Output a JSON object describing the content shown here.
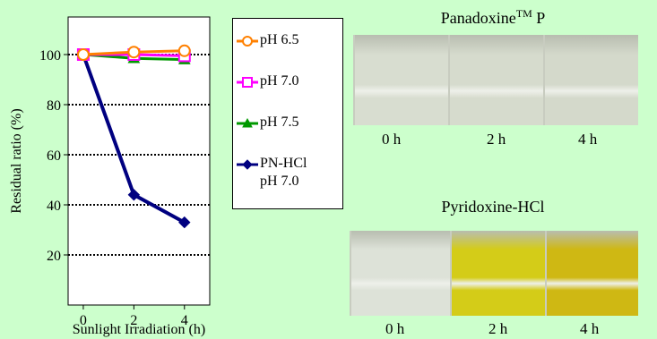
{
  "chart_data": {
    "type": "line",
    "x": [
      0,
      2,
      4
    ],
    "xticks": [
      "0",
      "2",
      "4"
    ],
    "xlim": [
      -0.6,
      5.0
    ],
    "ylim": [
      0,
      115
    ],
    "yticks": [
      20,
      40,
      60,
      80,
      100
    ],
    "xlabel": "Sunlight Irradiation (h)",
    "ylabel": "Residual ratio (%)",
    "grid": "horizontal dotted",
    "legend_position": "right",
    "series": [
      {
        "name": "pH 6.5",
        "label_lines": [
          "pH 6.5"
        ],
        "color": "#ff8000",
        "marker": "circle",
        "values": [
          100,
          101,
          101.5
        ]
      },
      {
        "name": "pH 7.0",
        "label_lines": [
          "pH 7.0"
        ],
        "color": "#ff00ff",
        "marker": "square",
        "values": [
          100,
          100,
          99.5
        ]
      },
      {
        "name": "pH 7.5",
        "label_lines": [
          "pH 7.5"
        ],
        "color": "#009900",
        "marker": "triangle",
        "values": [
          100,
          98.5,
          98
        ]
      },
      {
        "name": "PN-HCl pH 7.0",
        "label_lines": [
          "PN-HCl",
          "pH 7.0"
        ],
        "color": "#000080",
        "marker": "diamond",
        "values": [
          100,
          44,
          33
        ]
      }
    ]
  },
  "photos": [
    {
      "title": "Panadoxine",
      "title_sup": "TM",
      "title_suffix": " P",
      "labels": [
        "0 h",
        "2 h",
        "4 h"
      ],
      "vial_colors": [
        "#d8ddd0",
        "#d6dbcd",
        "#d4d9cb"
      ]
    },
    {
      "title": "Pyridoxine-HCl",
      "title_sup": "",
      "title_suffix": "",
      "labels": [
        "0 h",
        "2 h",
        "4 h"
      ],
      "vial_colors": [
        "#dde2d8",
        "#d4cc18",
        "#cfb813"
      ]
    }
  ]
}
